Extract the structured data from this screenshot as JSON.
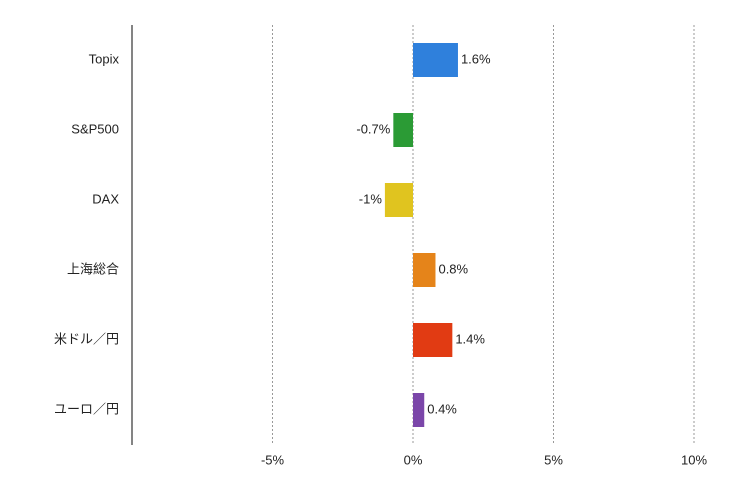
{
  "chart_data": {
    "type": "barh",
    "categories": [
      "Topix",
      "S&P500",
      "DAX",
      "上海総合",
      "米ドル／円",
      "ユーロ／円"
    ],
    "values": [
      1.6,
      -0.7,
      -1,
      0.8,
      1.4,
      0.4
    ],
    "value_labels": [
      "1.6%",
      "-0.7%",
      "-1%",
      "0.8%",
      "1.4%",
      "0.4%"
    ],
    "colors": [
      "#2f80dc",
      "#2b9b35",
      "#e0c41f",
      "#e5841a",
      "#e13b13",
      "#7b46a9"
    ],
    "xlim": [
      -10,
      10
    ],
    "xticks": [
      {
        "value": -5,
        "label": "-5%"
      },
      {
        "value": 0,
        "label": "0%"
      },
      {
        "value": 5,
        "label": "5%"
      },
      {
        "value": 10,
        "label": "10%"
      }
    ],
    "grid": true
  }
}
